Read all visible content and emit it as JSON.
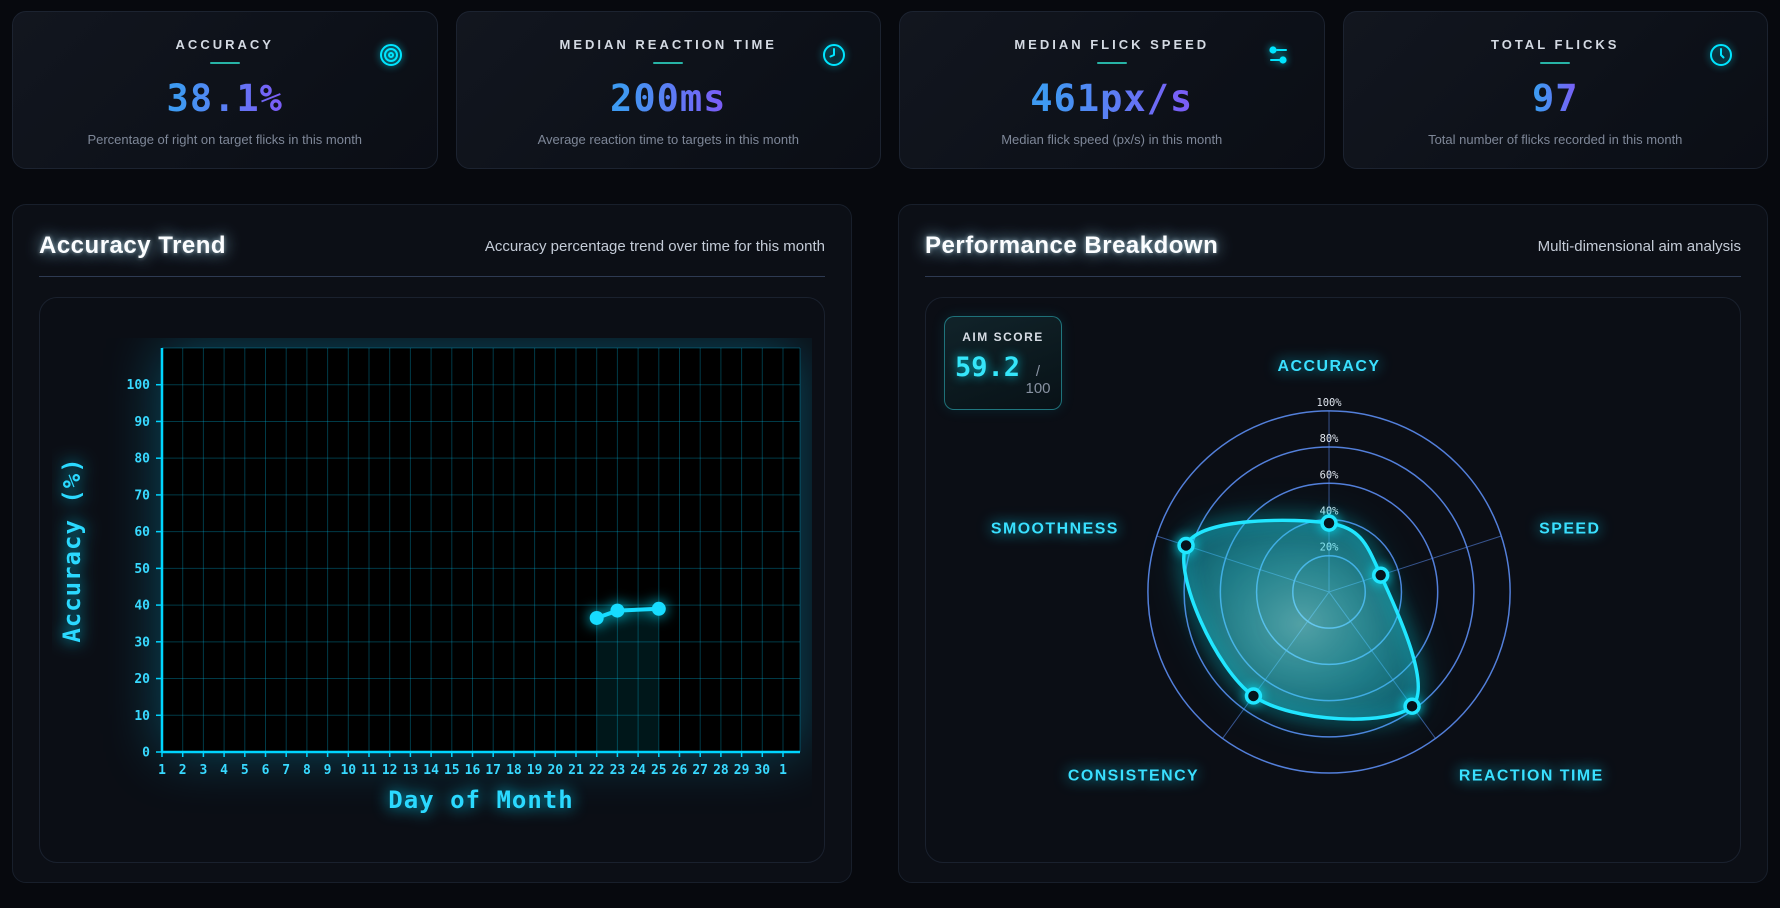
{
  "stats": [
    {
      "title": "ACCURACY",
      "value": "38.1%",
      "description": "Percentage of right on target flicks in this month",
      "icon": "target-icon"
    },
    {
      "title": "MEDIAN REACTION TIME",
      "value": "200ms",
      "description": "Average reaction time to targets in this month",
      "icon": "clock-icon"
    },
    {
      "title": "MEDIAN FLICK SPEED",
      "value": "461px/s",
      "description": "Median flick speed (px/s) in this month",
      "icon": "sliders-icon"
    },
    {
      "title": "TOTAL FLICKS",
      "value": "97",
      "description": "Total number of flicks recorded in this month",
      "icon": "clock-icon"
    }
  ],
  "accuracy_panel": {
    "title": "Accuracy Trend",
    "subtitle": "Accuracy percentage trend over time for this month"
  },
  "performance_panel": {
    "title": "Performance Breakdown",
    "subtitle": "Multi-dimensional aim analysis",
    "aim_score_label": "AIM SCORE",
    "aim_score": "59.2",
    "aim_score_max": "/ 100"
  },
  "colors": {
    "accent_cyan": "#00e5ff",
    "chart_cyan": "#17dcff",
    "grid_cyan": "rgba(0,208,255,0.28)",
    "axis_cyan": "#00d5ff",
    "tick_label_cyan": "#38d9ff",
    "radar_ring_blue": "#5b8cf0",
    "radar_label_cyan": "#3ae0ff",
    "value_gradient_start": "#3e9af2",
    "value_gradient_end": "#7a5ef6",
    "underline_teal": "#27b3a6"
  },
  "chart_data": [
    {
      "type": "line",
      "title": "Accuracy Trend",
      "xlabel": "Day of Month",
      "ylabel": "Accuracy (%)",
      "x_ticks": [
        "1",
        "2",
        "3",
        "4",
        "5",
        "6",
        "7",
        "8",
        "9",
        "10",
        "11",
        "12",
        "13",
        "14",
        "15",
        "16",
        "17",
        "18",
        "19",
        "20",
        "21",
        "22",
        "23",
        "24",
        "25",
        "26",
        "27",
        "28",
        "29",
        "30",
        "1"
      ],
      "y_ticks": [
        0,
        10,
        20,
        30,
        40,
        50,
        60,
        70,
        80,
        90,
        100
      ],
      "ylim": [
        0,
        110
      ],
      "grid": true,
      "points": [
        {
          "day": 22,
          "value": 36.5
        },
        {
          "day": 23,
          "value": 38.5
        },
        {
          "day": 25,
          "value": 39
        }
      ]
    },
    {
      "type": "radar",
      "title": "Performance Breakdown",
      "max": 100,
      "ring_labels": [
        "20%",
        "40%",
        "60%",
        "80%",
        "100%"
      ],
      "series": [
        {
          "axis": "ACCURACY",
          "value": 38
        },
        {
          "axis": "SPEED",
          "value": 30
        },
        {
          "axis": "REACTION TIME",
          "value": 78
        },
        {
          "axis": "CONSISTENCY",
          "value": 71
        },
        {
          "axis": "SMOOTHNESS",
          "value": 83
        }
      ],
      "aim_score": 59.2
    }
  ]
}
